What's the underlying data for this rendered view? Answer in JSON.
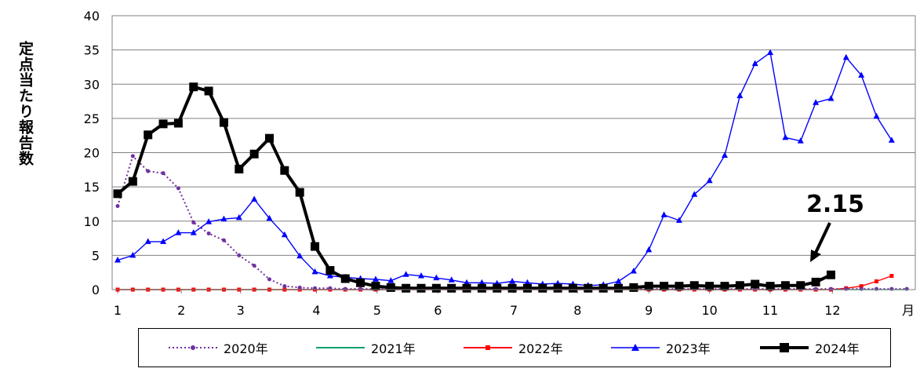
{
  "chart_data": {
    "type": "line",
    "title": "",
    "xlabel": "",
    "ylabel": "定点当たり報告数",
    "x_unit": "月",
    "ylim": [
      0,
      40
    ],
    "y_ticks": [
      "0",
      "5",
      "10",
      "15",
      "20",
      "25",
      "30",
      "35",
      "40"
    ],
    "x_ticks": [
      {
        "label": "1",
        "week": 1
      },
      {
        "label": "2",
        "week": 5.2
      },
      {
        "label": "3",
        "week": 9.1
      },
      {
        "label": "4",
        "week": 14.1
      },
      {
        "label": "5",
        "week": 18.1
      },
      {
        "label": "6",
        "week": 22.1
      },
      {
        "label": "7",
        "week": 27.1
      },
      {
        "label": "8",
        "week": 31.3
      },
      {
        "label": "9",
        "week": 36
      },
      {
        "label": "10",
        "week": 40
      },
      {
        "label": "11",
        "week": 44
      },
      {
        "label": "12",
        "week": 48.1
      }
    ],
    "xlim": [
      1,
      53.5
    ],
    "grid": "horizontal",
    "legend_position": "bottom",
    "series": [
      {
        "name": "2020年",
        "color": "#7030A0",
        "style": "dotted",
        "marker": "circle",
        "values": [
          12.2,
          19.5,
          17.3,
          17,
          14.8,
          9.8,
          8.2,
          7.2,
          5,
          3.5,
          1.5,
          0.5,
          0.3,
          0.2,
          0.2,
          0.1,
          0.1,
          0.1,
          0.1,
          0.1,
          0.1,
          0.1,
          0.1,
          0.1,
          0.1,
          0.1,
          0.1,
          0.1,
          0.1,
          0.1,
          0.1,
          0.1,
          0.1,
          0.1,
          0.1,
          0.1,
          0.1,
          0.1,
          0.1,
          0.1,
          0.1,
          0.1,
          0.1,
          0.1,
          0.1,
          0.1,
          0.1,
          0.1,
          0.1,
          0.1,
          0.1,
          0.1,
          0.1
        ]
      },
      {
        "name": "2021年",
        "color": "#00A070",
        "style": "solid",
        "marker": "dash",
        "values": [
          0,
          0,
          0,
          0,
          0,
          0,
          0,
          0,
          0,
          0,
          0,
          0,
          0,
          0,
          0,
          0,
          0,
          0,
          0,
          0,
          0,
          0,
          0,
          0,
          0,
          0,
          0,
          0,
          0,
          0,
          0,
          0,
          0,
          0,
          0,
          0,
          0,
          0,
          0,
          0,
          0,
          0,
          0,
          0,
          0,
          0,
          0,
          0,
          0,
          0,
          0,
          0,
          0
        ]
      },
      {
        "name": "2022年",
        "color": "#FF0000",
        "style": "solid",
        "marker": "square",
        "values": [
          0,
          0,
          0,
          0,
          0,
          0,
          0,
          0,
          0,
          0,
          0,
          0,
          0,
          0,
          0,
          0,
          0,
          0,
          0,
          0,
          0,
          0,
          0,
          0,
          0,
          0,
          0,
          0,
          0,
          0,
          0,
          0,
          0,
          0,
          0,
          0,
          0,
          0,
          0,
          0,
          0,
          0,
          0,
          0,
          0,
          0,
          0,
          0,
          0.2,
          0.5,
          1.2,
          2
        ]
      },
      {
        "name": "2023年",
        "color": "#0000FF",
        "style": "solid",
        "marker": "triangle",
        "values": [
          4.3,
          5,
          7,
          7,
          8.3,
          8.3,
          9.9,
          10.3,
          10.5,
          13.2,
          10.4,
          8,
          4.9,
          2.6,
          2,
          1.8,
          1.6,
          1.5,
          1.3,
          2.2,
          2,
          1.7,
          1.4,
          1,
          1,
          0.9,
          1.2,
          1,
          0.8,
          0.9,
          0.8,
          0.6,
          0.7,
          1.2,
          2.7,
          5.8,
          10.9,
          10.1,
          13.9,
          15.9,
          19.6,
          28.3,
          33,
          34.6,
          22.2,
          21.7,
          27.3,
          27.9,
          33.9,
          31.3,
          25.3,
          21.8
        ]
      },
      {
        "name": "2024年",
        "color": "#000000",
        "style": "solid",
        "marker": "square",
        "values": [
          14,
          15.8,
          22.6,
          24.2,
          24.3,
          29.6,
          29,
          24.4,
          17.6,
          19.8,
          22.1,
          17.4,
          14.2,
          6.3,
          2.8,
          1.6,
          1,
          0.5,
          0.3,
          0.2,
          0.2,
          0.2,
          0.2,
          0.2,
          0.2,
          0.2,
          0.2,
          0.2,
          0.2,
          0.2,
          0.2,
          0.2,
          0.2,
          0.2,
          0.3,
          0.5,
          0.5,
          0.5,
          0.6,
          0.5,
          0.5,
          0.6,
          0.8,
          0.5,
          0.6,
          0.6,
          1.1,
          2.15
        ]
      }
    ],
    "annotation": {
      "text": "2.15",
      "points_to": "2024年, week 48"
    }
  }
}
